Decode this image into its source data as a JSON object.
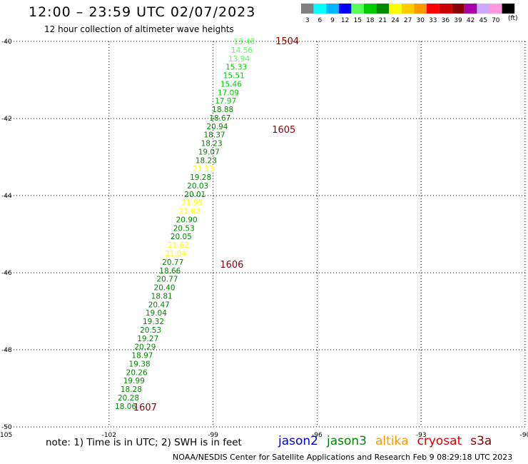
{
  "header": {
    "title": "12:00 – 23:59 UTC 02/07/2023",
    "subtitle": "12 hour collection of altimeter wave heights"
  },
  "colorbar": {
    "unit_label": "(ft)",
    "bins": [
      {
        "label": "3",
        "color": "#808080"
      },
      {
        "label": "6",
        "color": "#00ffff"
      },
      {
        "label": "9",
        "color": "#00b4ff"
      },
      {
        "label": "12",
        "color": "#0000ff"
      },
      {
        "label": "15",
        "color": "#55ff55"
      },
      {
        "label": "18",
        "color": "#00cc00"
      },
      {
        "label": "21",
        "color": "#008800"
      },
      {
        "label": "24",
        "color": "#ffff00"
      },
      {
        "label": "27",
        "color": "#ffcc00"
      },
      {
        "label": "30",
        "color": "#ff9900"
      },
      {
        "label": "33",
        "color": "#ff0000"
      },
      {
        "label": "36",
        "color": "#cc0000"
      },
      {
        "label": "39",
        "color": "#880000"
      },
      {
        "label": "42",
        "color": "#aa00aa"
      },
      {
        "label": "45",
        "color": "#ccaaff"
      },
      {
        "label": "70",
        "color": "#ff99dd"
      },
      {
        "label": "",
        "color": "#000000"
      }
    ]
  },
  "note": "note:  1) Time is in UTC;  2) SWH is in feet",
  "satellites": [
    {
      "name": "jason2",
      "color": "#0000dd"
    },
    {
      "name": "jason3",
      "color": "#008800"
    },
    {
      "name": "altika",
      "color": "#ff9900"
    },
    {
      "name": "cryosat",
      "color": "#dd0000"
    },
    {
      "name": "s3a",
      "color": "#880000"
    }
  ],
  "footer": "NOAA/NESDIS Center for Satellite Applications and Research    Feb  9 08:29:18 UTC 2023",
  "chart_data": {
    "type": "scatter",
    "xlim": [
      -105,
      -90
    ],
    "ylim": [
      -50,
      -40
    ],
    "x_ticks": [
      "-105",
      "-102",
      "-99",
      "-96",
      "-93",
      "-90"
    ],
    "y_ticks": [
      "-40",
      "-42",
      "-44",
      "-46",
      "-48",
      "-50"
    ],
    "grid": true,
    "track_labels": [
      {
        "text": "1504",
        "x": -97.2,
        "y": -40.0,
        "color": "#880000"
      },
      {
        "text": "1605",
        "x": -97.3,
        "y": -42.3,
        "color": "#880000"
      },
      {
        "text": "1606",
        "x": -98.8,
        "y": -45.8,
        "color": "#880000"
      },
      {
        "text": "1607",
        "x": -101.3,
        "y": -49.5,
        "color": "#880000"
      }
    ],
    "points": [
      {
        "label": "13.48",
        "x": -98.1,
        "y": -40.0,
        "color": "#55ff55"
      },
      {
        "label": "14.56",
        "x": -98.17,
        "y": -40.22,
        "color": "#55ff55"
      },
      {
        "label": "13.94",
        "x": -98.25,
        "y": -40.44,
        "color": "#55ff55"
      },
      {
        "label": "15.33",
        "x": -98.33,
        "y": -40.66,
        "color": "#00cc00"
      },
      {
        "label": "15.51",
        "x": -98.4,
        "y": -40.88,
        "color": "#00cc00"
      },
      {
        "label": "15.46",
        "x": -98.48,
        "y": -41.1,
        "color": "#00cc00"
      },
      {
        "label": "17.09",
        "x": -98.56,
        "y": -41.32,
        "color": "#00cc00"
      },
      {
        "label": "17.97",
        "x": -98.64,
        "y": -41.54,
        "color": "#00cc00"
      },
      {
        "label": "18.88",
        "x": -98.72,
        "y": -41.76,
        "color": "#008800"
      },
      {
        "label": "18.67",
        "x": -98.8,
        "y": -41.98,
        "color": "#008800"
      },
      {
        "label": "20.94",
        "x": -98.88,
        "y": -42.2,
        "color": "#008800"
      },
      {
        "label": "18.37",
        "x": -98.96,
        "y": -42.42,
        "color": "#008800"
      },
      {
        "label": "18.23",
        "x": -99.04,
        "y": -42.64,
        "color": "#008800"
      },
      {
        "label": "19.07",
        "x": -99.12,
        "y": -42.86,
        "color": "#008800"
      },
      {
        "label": "18.23",
        "x": -99.2,
        "y": -43.08,
        "color": "#008800"
      },
      {
        "label": "21.13",
        "x": -99.28,
        "y": -43.3,
        "color": "#ffff00"
      },
      {
        "label": "19.28",
        "x": -99.36,
        "y": -43.52,
        "color": "#008800"
      },
      {
        "label": "20.03",
        "x": -99.44,
        "y": -43.74,
        "color": "#008800"
      },
      {
        "label": "20.01",
        "x": -99.52,
        "y": -43.96,
        "color": "#008800"
      },
      {
        "label": "21.95",
        "x": -99.6,
        "y": -44.18,
        "color": "#ffff00"
      },
      {
        "label": "21.62",
        "x": -99.68,
        "y": -44.4,
        "color": "#ffff00"
      },
      {
        "label": "20.90",
        "x": -99.76,
        "y": -44.62,
        "color": "#008800"
      },
      {
        "label": "20.53",
        "x": -99.84,
        "y": -44.84,
        "color": "#008800"
      },
      {
        "label": "20.05",
        "x": -99.92,
        "y": -45.06,
        "color": "#008800"
      },
      {
        "label": "21.62",
        "x": -100.0,
        "y": -45.28,
        "color": "#ffff00"
      },
      {
        "label": "21.04",
        "x": -100.08,
        "y": -45.5,
        "color": "#ffff00"
      },
      {
        "label": "20.77",
        "x": -100.16,
        "y": -45.72,
        "color": "#008800"
      },
      {
        "label": "18.66",
        "x": -100.24,
        "y": -45.94,
        "color": "#008800"
      },
      {
        "label": "20.77",
        "x": -100.32,
        "y": -46.16,
        "color": "#008800"
      },
      {
        "label": "20.40",
        "x": -100.4,
        "y": -46.38,
        "color": "#008800"
      },
      {
        "label": "18.81",
        "x": -100.48,
        "y": -46.6,
        "color": "#008800"
      },
      {
        "label": "20.47",
        "x": -100.56,
        "y": -46.82,
        "color": "#008800"
      },
      {
        "label": "19.04",
        "x": -100.64,
        "y": -47.04,
        "color": "#008800"
      },
      {
        "label": "19.32",
        "x": -100.72,
        "y": -47.26,
        "color": "#008800"
      },
      {
        "label": "20.53",
        "x": -100.8,
        "y": -47.48,
        "color": "#008800"
      },
      {
        "label": "19.27",
        "x": -100.88,
        "y": -47.7,
        "color": "#008800"
      },
      {
        "label": "20.29",
        "x": -100.96,
        "y": -47.92,
        "color": "#008800"
      },
      {
        "label": "18.97",
        "x": -101.04,
        "y": -48.14,
        "color": "#008800"
      },
      {
        "label": "19.38",
        "x": -101.12,
        "y": -48.36,
        "color": "#008800"
      },
      {
        "label": "20.26",
        "x": -101.2,
        "y": -48.58,
        "color": "#008800"
      },
      {
        "label": "19.99",
        "x": -101.28,
        "y": -48.8,
        "color": "#008800"
      },
      {
        "label": "18.28",
        "x": -101.36,
        "y": -49.02,
        "color": "#008800"
      },
      {
        "label": "20.28",
        "x": -101.44,
        "y": -49.24,
        "color": "#008800"
      },
      {
        "label": "18.06",
        "x": -101.52,
        "y": -49.46,
        "color": "#008800"
      }
    ]
  }
}
